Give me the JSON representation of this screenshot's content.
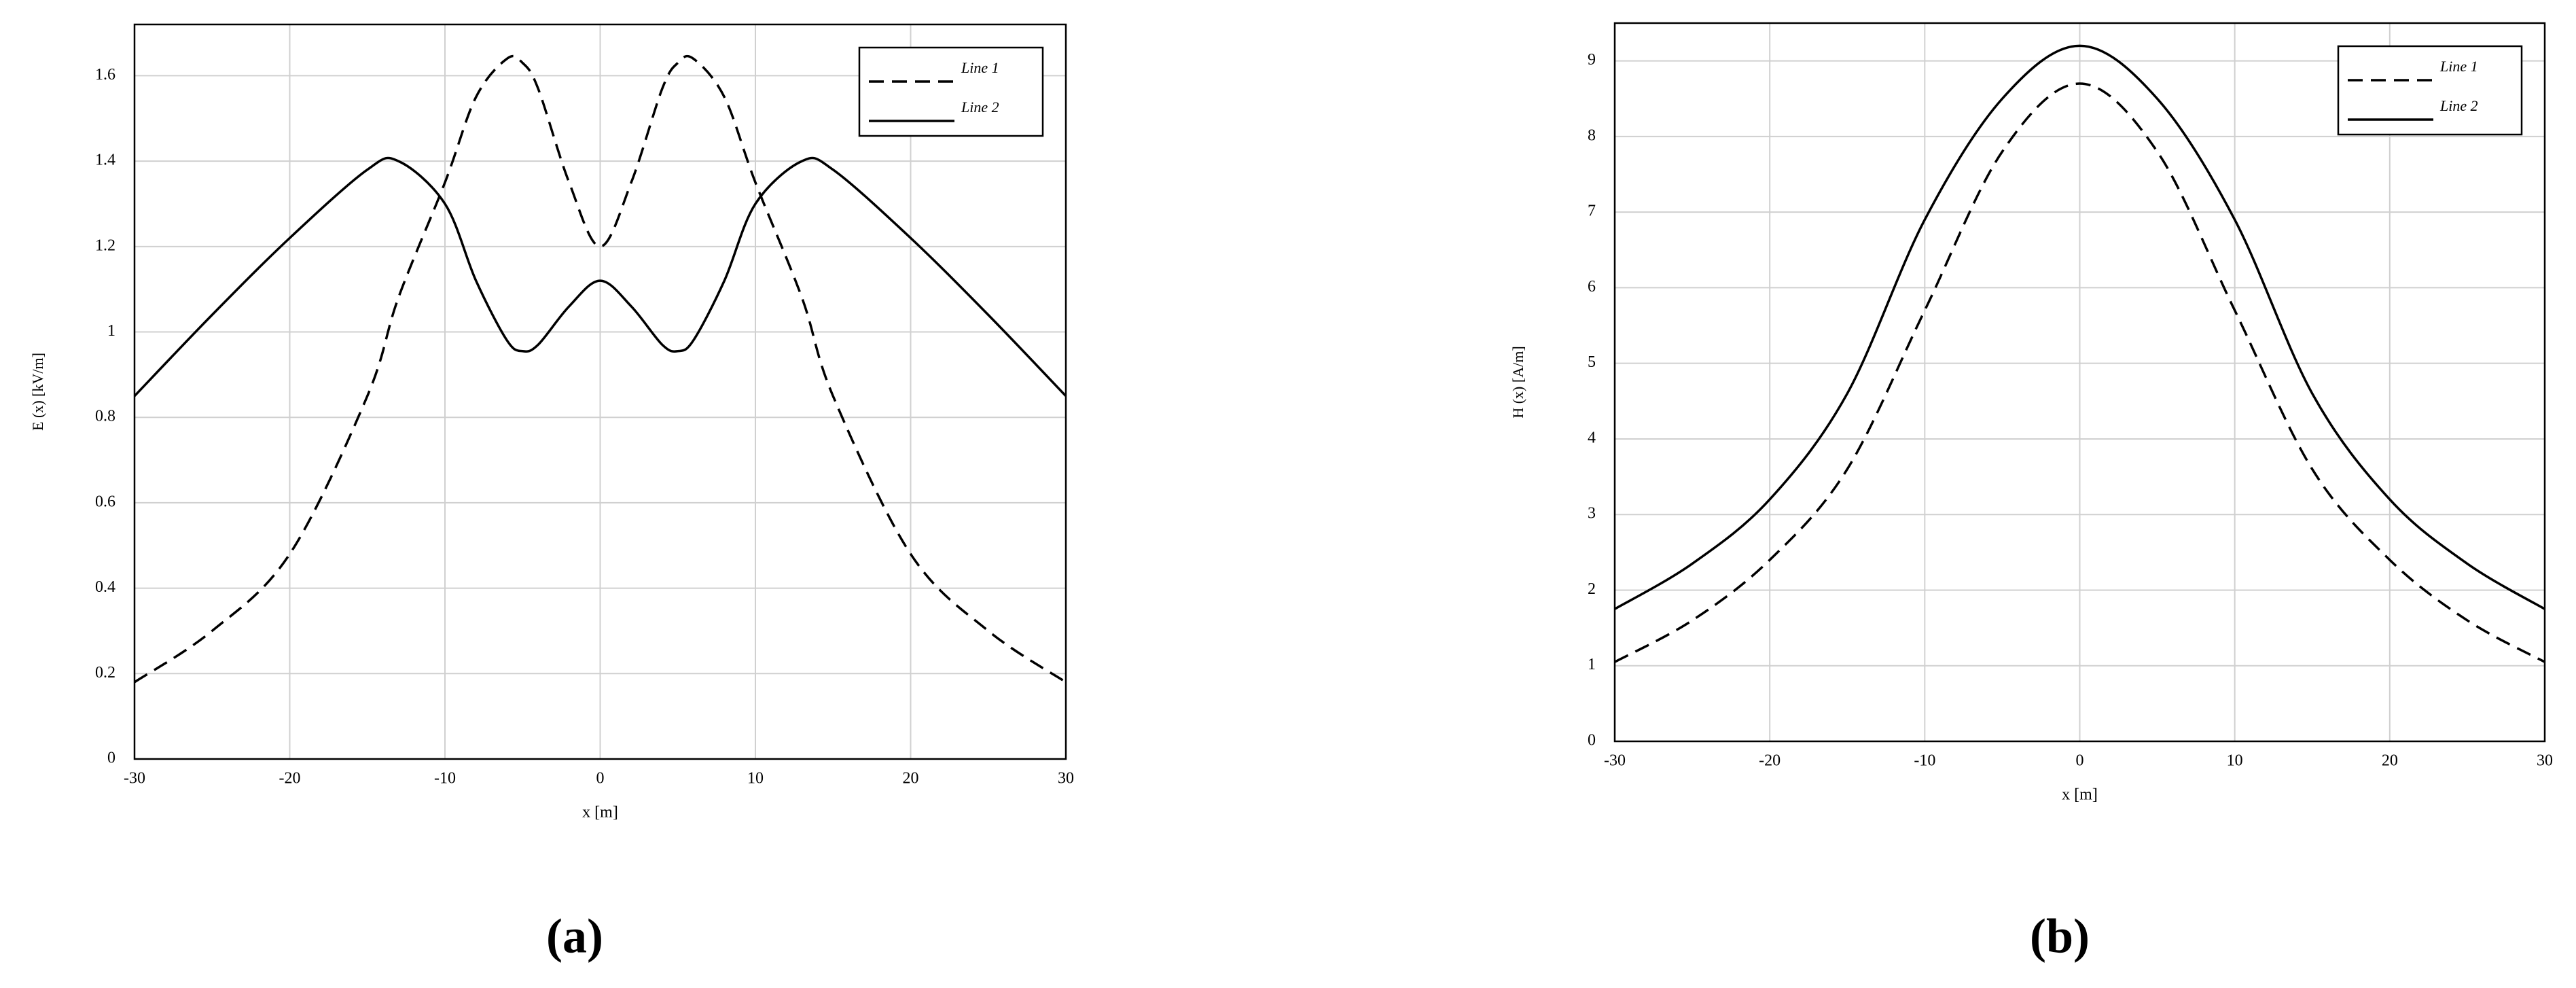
{
  "chart_data": [
    {
      "type": "line",
      "caption": "(a)",
      "xlabel": "x [m]",
      "ylabel": "E (x) [kV/m]",
      "x": [
        -30,
        -25,
        -20,
        -15,
        -13,
        -10,
        -8,
        -6,
        -5,
        -4,
        -2,
        0,
        2,
        4,
        5,
        6,
        8,
        10,
        13,
        15,
        20,
        25,
        30
      ],
      "series": [
        {
          "name": "Line 1",
          "color": "#000000",
          "dash": "dashed",
          "values": [
            0.18,
            0.3,
            0.48,
            0.85,
            1.08,
            1.35,
            1.55,
            1.64,
            1.63,
            1.57,
            1.35,
            1.2,
            1.35,
            1.57,
            1.63,
            1.64,
            1.55,
            1.35,
            1.08,
            0.85,
            0.48,
            0.3,
            0.18
          ]
        },
        {
          "name": "Line 2",
          "color": "#000000",
          "dash": "solid",
          "values": [
            0.85,
            1.04,
            1.22,
            1.38,
            1.4,
            1.3,
            1.12,
            0.98,
            0.955,
            0.97,
            1.06,
            1.12,
            1.06,
            0.97,
            0.955,
            0.98,
            1.12,
            1.3,
            1.4,
            1.38,
            1.22,
            1.04,
            0.85
          ]
        }
      ],
      "xlim": [
        -30,
        30
      ],
      "ylim": [
        0,
        1.72
      ],
      "xticks": [
        -30,
        -20,
        -10,
        0,
        10,
        20,
        30
      ],
      "yticks": [
        0,
        0.2,
        0.4,
        0.6,
        0.8,
        1,
        1.2,
        1.4,
        1.6
      ],
      "grid": true,
      "legend": "upper right"
    },
    {
      "type": "line",
      "caption": "(b)",
      "xlabel": "x [m]",
      "ylabel": "H (x) [A/m]",
      "x": [
        -30,
        -25,
        -20,
        -15,
        -10,
        -5,
        0,
        5,
        10,
        15,
        20,
        25,
        30
      ],
      "series": [
        {
          "name": "Line 1",
          "color": "#000000",
          "dash": "dashed",
          "values": [
            1.05,
            1.6,
            2.4,
            3.6,
            5.7,
            7.8,
            8.7,
            7.8,
            5.7,
            3.6,
            2.4,
            1.6,
            1.05
          ]
        },
        {
          "name": "Line 2",
          "color": "#000000",
          "dash": "solid",
          "values": [
            1.75,
            2.35,
            3.2,
            4.6,
            6.9,
            8.5,
            9.2,
            8.5,
            6.9,
            4.6,
            3.2,
            2.35,
            1.75
          ]
        }
      ],
      "xlim": [
        -30,
        30
      ],
      "ylim": [
        0,
        9.5
      ],
      "xticks": [
        -30,
        -20,
        -10,
        0,
        10,
        20,
        30
      ],
      "yticks": [
        0,
        1,
        2,
        3,
        4,
        5,
        6,
        7,
        8,
        9
      ],
      "grid": true,
      "legend": "upper right"
    }
  ]
}
